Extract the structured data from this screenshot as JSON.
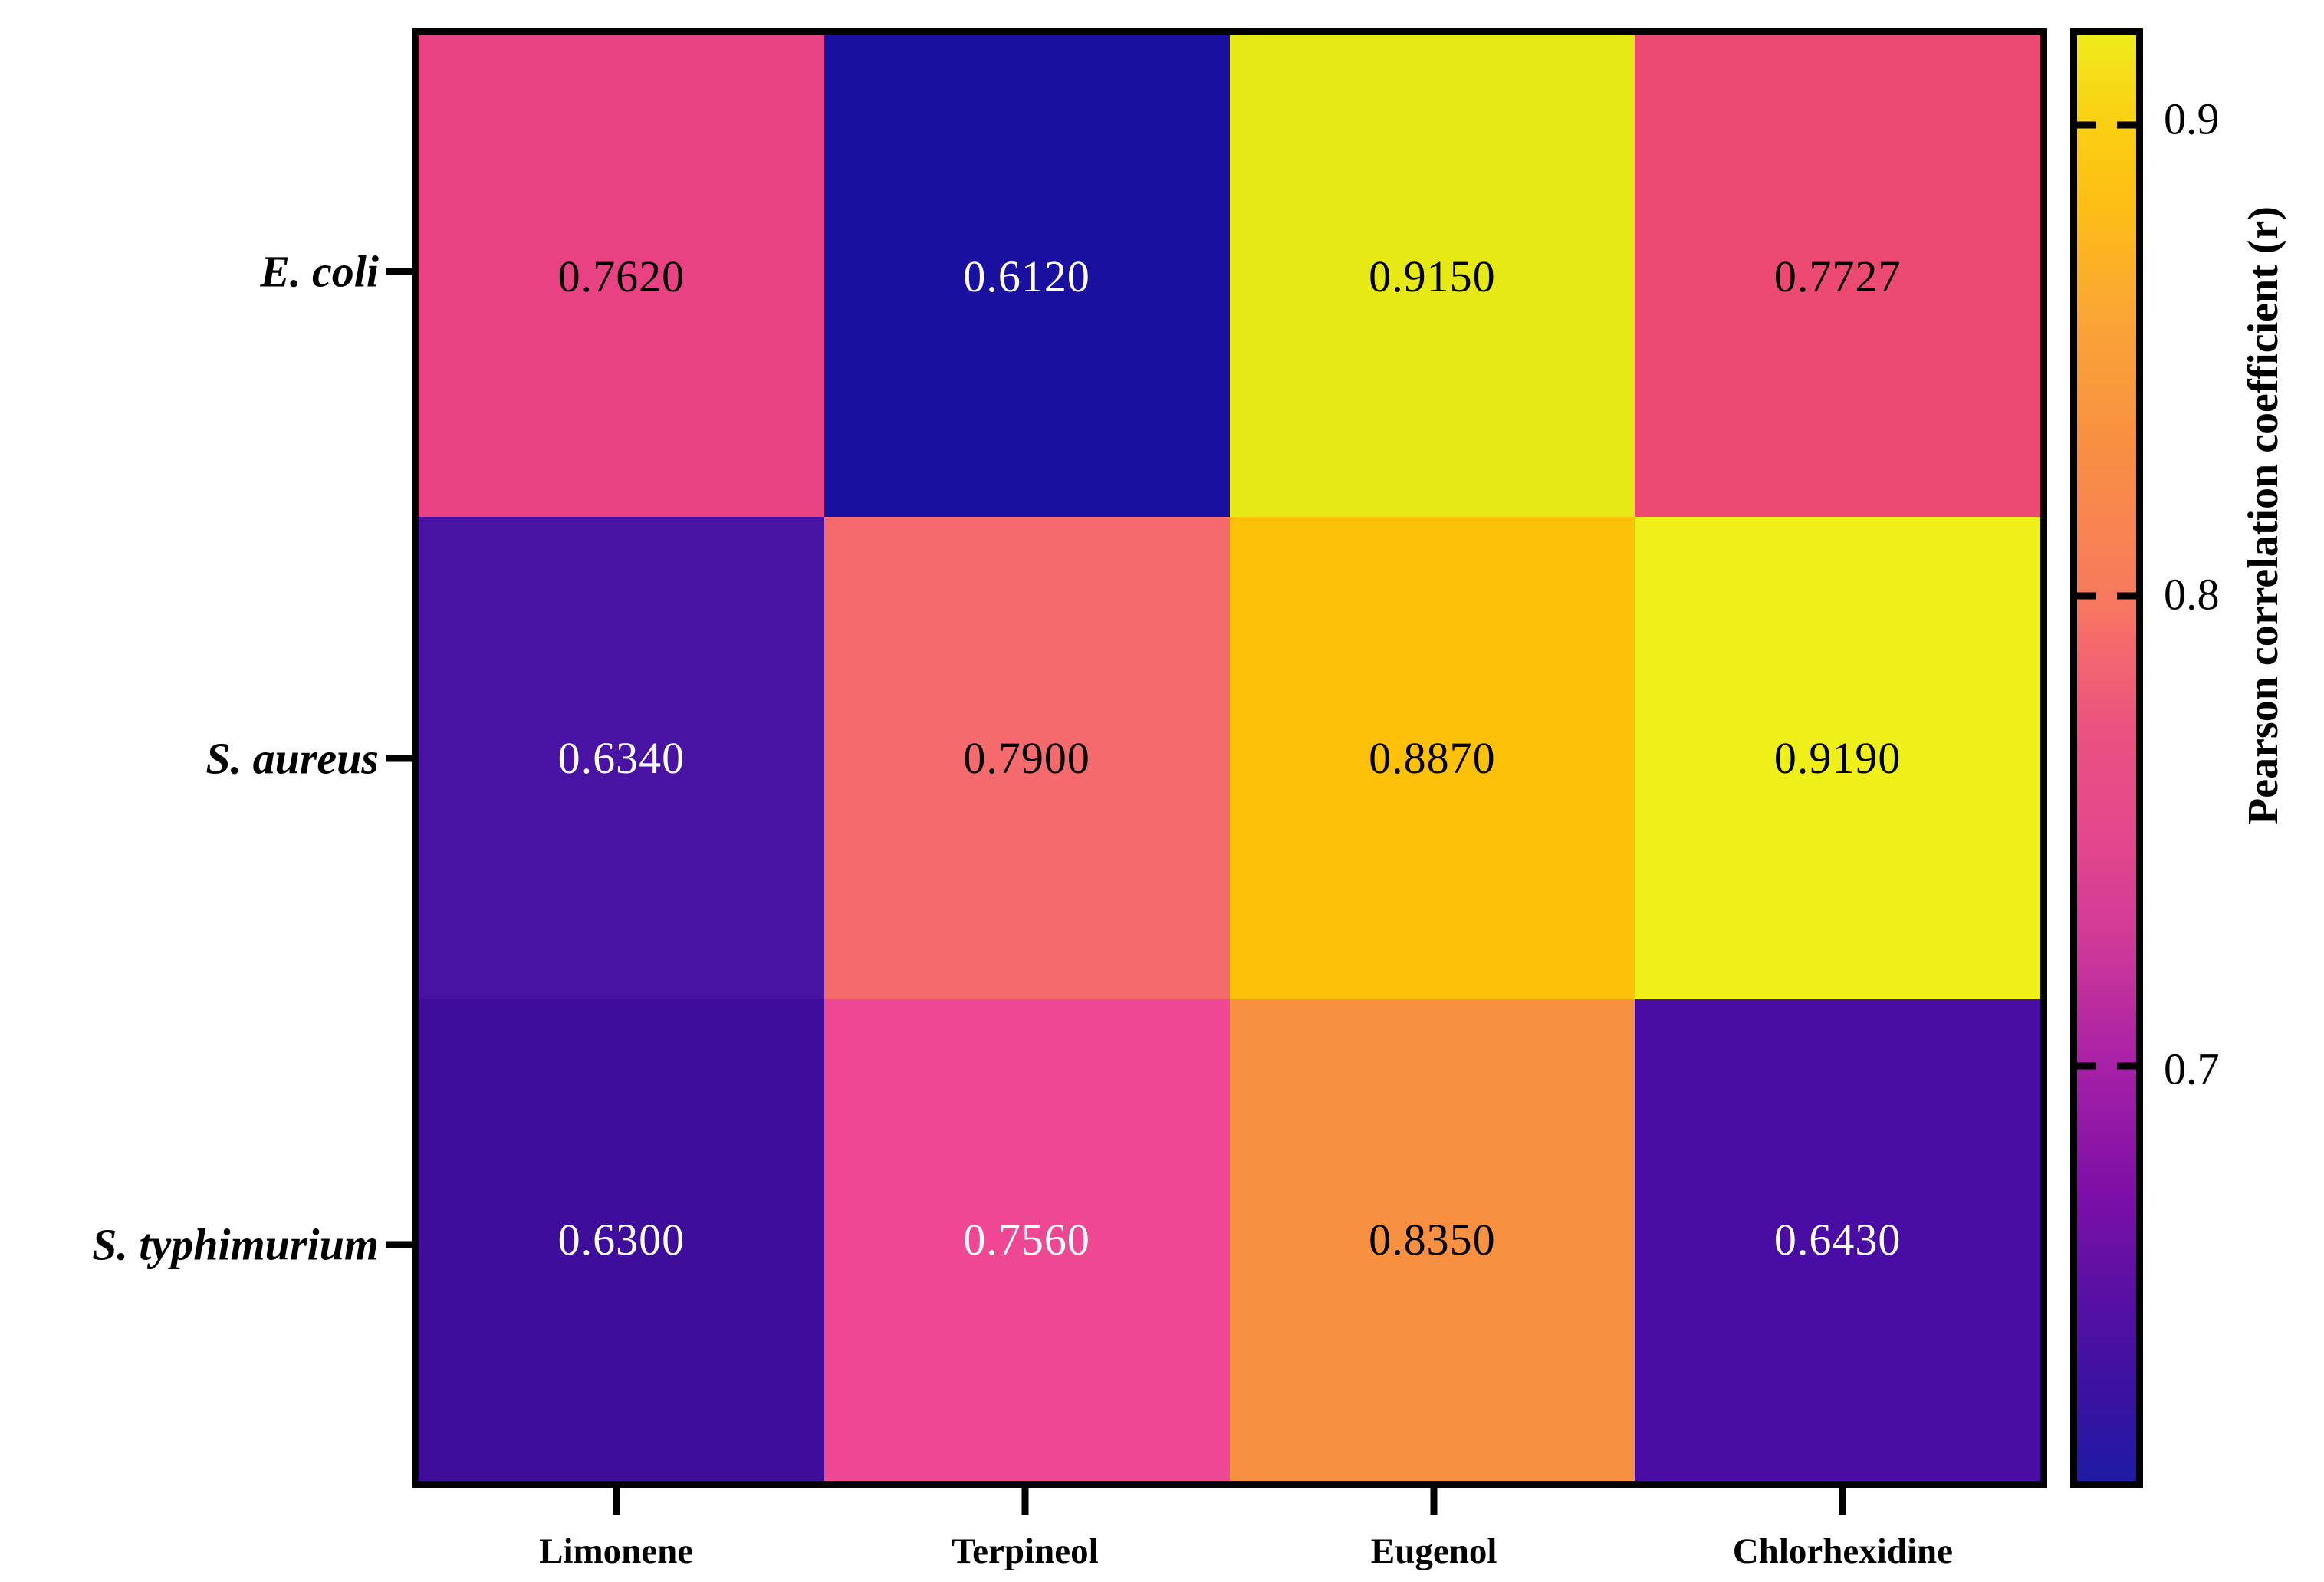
{
  "figure": {
    "background": "#FFFFFF",
    "frame_color": "#000000"
  },
  "chart_data": {
    "type": "heatmap",
    "title": "",
    "xlabel": "",
    "ylabel": "",
    "grid": false,
    "x_categories": [
      "Limonene",
      "Terpineol",
      "Eugenol",
      "Chlorhexidine"
    ],
    "y_categories": [
      "E. coli",
      "S. aureus",
      "S. typhimurium"
    ],
    "series": [
      {
        "name": "E. coli",
        "values": [
          0.762,
          0.612,
          0.915,
          0.7727
        ]
      },
      {
        "name": "S. aureus",
        "values": [
          0.634,
          0.79,
          0.887,
          0.919
        ]
      },
      {
        "name": "S. typhimurium",
        "values": [
          0.63,
          0.756,
          0.835,
          0.643
        ]
      }
    ],
    "cell_labels": [
      [
        "0.7620",
        "0.6120",
        "0.9150",
        "0.7727"
      ],
      [
        "0.6340",
        "0.7900",
        "0.8870",
        "0.9190"
      ],
      [
        "0.6300",
        "0.7560",
        "0.8350",
        "0.6430"
      ]
    ],
    "cell_colors": [
      [
        "#E94283",
        "#1A10A0",
        "#E7E916",
        "#EC4A70"
      ],
      [
        "#4812A2",
        "#F56A6C",
        "#FEC109",
        "#EFF019"
      ],
      [
        "#3E0D9A",
        "#EE4895",
        "#F89042",
        "#4A0DA3"
      ]
    ],
    "cell_text_colors": [
      [
        "#000000",
        "#FFFFFF",
        "#000000",
        "#000000"
      ],
      [
        "#FFFFFF",
        "#000000",
        "#000000",
        "#000000"
      ],
      [
        "#FFFFFF",
        "#FFFFFF",
        "#000000",
        "#FFFFFF"
      ]
    ],
    "value_range": [
      0.612,
      0.919
    ],
    "colorbar": {
      "label": "Pearson correlation coefficient (r)",
      "position": "right",
      "ticks": [
        {
          "label": "0.9",
          "pos_pct": 6.2
        },
        {
          "label": "0.8",
          "pos_pct": 38.8
        },
        {
          "label": "0.7",
          "pos_pct": 71.3
        }
      ],
      "gradient": [
        {
          "pct": 0,
          "color": "#EEEC1B"
        },
        {
          "pct": 3,
          "color": "#F5DC18"
        },
        {
          "pct": 6.2,
          "color": "#FACF13"
        },
        {
          "pct": 12,
          "color": "#FDBD16"
        },
        {
          "pct": 20,
          "color": "#FAA338"
        },
        {
          "pct": 28,
          "color": "#F89042"
        },
        {
          "pct": 38.8,
          "color": "#F77A5E"
        },
        {
          "pct": 42,
          "color": "#F56A6C"
        },
        {
          "pct": 48,
          "color": "#EA5280"
        },
        {
          "pct": 55,
          "color": "#E5488C"
        },
        {
          "pct": 62,
          "color": "#D23A96"
        },
        {
          "pct": 71.3,
          "color": "#A621A7"
        },
        {
          "pct": 80,
          "color": "#7D0FA7"
        },
        {
          "pct": 88,
          "color": "#5410A3"
        },
        {
          "pct": 94,
          "color": "#3A12A1"
        },
        {
          "pct": 100,
          "color": "#1D1AA4"
        }
      ]
    }
  }
}
